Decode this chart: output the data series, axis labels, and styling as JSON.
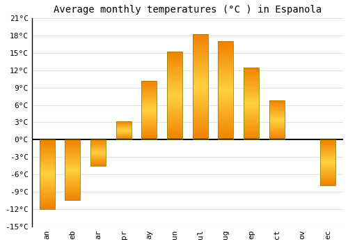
{
  "title": "Average monthly temperatures (°C ) in Espanola",
  "months": [
    "an",
    "eb",
    "ar",
    "pr",
    "ay",
    "un",
    "ul",
    "ug",
    "ep",
    "ct",
    "ov",
    "ec"
  ],
  "values": [
    -12,
    -10.5,
    -4.5,
    3.2,
    10.2,
    15.3,
    18.3,
    17.0,
    12.5,
    6.8,
    0,
    -7.9
  ],
  "bar_color_light": "#FFD040",
  "bar_color_dark": "#F08000",
  "bar_edge_color": "#888800",
  "ylim": [
    -15,
    21
  ],
  "yticks": [
    -15,
    -12,
    -9,
    -6,
    -3,
    0,
    3,
    6,
    9,
    12,
    15,
    18,
    21
  ],
  "ytick_labels": [
    "-15°C",
    "-12°C",
    "-9°C",
    "-6°C",
    "-3°C",
    "0°C",
    "3°C",
    "6°C",
    "9°C",
    "12°C",
    "15°C",
    "18°C",
    "21°C"
  ],
  "background_color": "#ffffff",
  "grid_color": "#e0e0e0",
  "zero_line_color": "#000000",
  "title_fontsize": 10,
  "tick_fontsize": 8,
  "bar_width": 0.6
}
